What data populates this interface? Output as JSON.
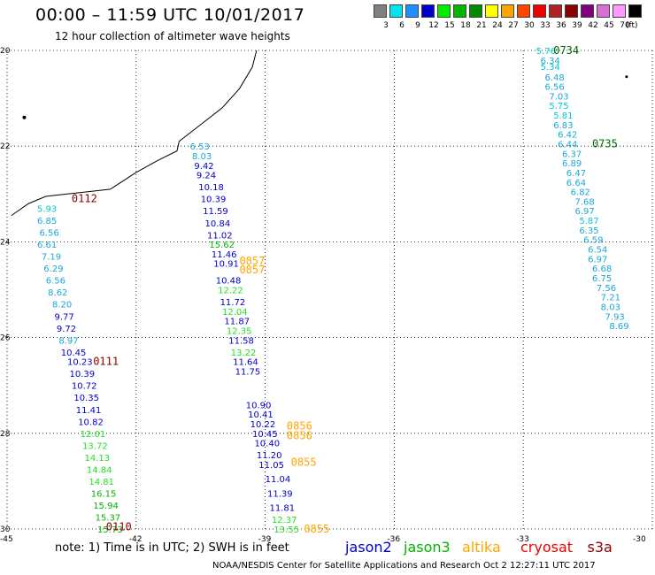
{
  "title": "00:00 – 11:59 UTC 10/01/2017",
  "subtitle": "12 hour collection of altimeter wave heights",
  "legend": {
    "unit": "(ft)",
    "bins": [
      {
        "label": "3",
        "color": "#808080"
      },
      {
        "label": "6",
        "color": "#00e5ee"
      },
      {
        "label": "9",
        "color": "#1e90ff"
      },
      {
        "label": "12",
        "color": "#0000cd"
      },
      {
        "label": "15",
        "color": "#00ee00"
      },
      {
        "label": "18",
        "color": "#00b400"
      },
      {
        "label": "21",
        "color": "#008b00"
      },
      {
        "label": "24",
        "color": "#ffff00"
      },
      {
        "label": "27",
        "color": "#ffa500"
      },
      {
        "label": "30",
        "color": "#ff4500"
      },
      {
        "label": "33",
        "color": "#ee0000"
      },
      {
        "label": "36",
        "color": "#b22222"
      },
      {
        "label": "39",
        "color": "#8b0000"
      },
      {
        "label": "42",
        "color": "#800080"
      },
      {
        "label": "45",
        "color": "#da70d6"
      },
      {
        "label": "70",
        "color": "#ff99ff"
      },
      {
        "label": "",
        "color": "#000000"
      }
    ]
  },
  "axes": {
    "lat_ticks": [
      "20",
      "22",
      "24",
      "26",
      "28",
      "30"
    ],
    "lon_ticks": [
      "-45",
      "-42",
      "-39",
      "-36",
      "-33",
      "-30"
    ]
  },
  "tracks": [
    {
      "name": "jason2-0734",
      "color_key": "cyan",
      "points": [
        {
          "lon": -32.7,
          "lat": -20.0,
          "v": "5.76"
        },
        {
          "lon": -32.6,
          "lat": -20.2,
          "v": "6.34"
        },
        {
          "lon": -32.6,
          "lat": -20.33,
          "v": "5.34"
        },
        {
          "lon": -32.5,
          "lat": -20.55,
          "v": "6.48"
        },
        {
          "lon": -32.5,
          "lat": -20.75,
          "v": "6.56"
        },
        {
          "lon": -32.4,
          "lat": -20.95,
          "v": "7.03"
        },
        {
          "lon": -32.4,
          "lat": -21.15,
          "v": "5.75"
        },
        {
          "lon": -32.3,
          "lat": -21.35,
          "v": "5.81"
        },
        {
          "lon": -32.3,
          "lat": -21.55,
          "v": "6.83"
        },
        {
          "lon": -32.2,
          "lat": -21.75,
          "v": "6.42"
        },
        {
          "lon": -32.2,
          "lat": -21.95,
          "v": "6.44"
        },
        {
          "lon": -32.1,
          "lat": -22.15,
          "v": "6.37"
        },
        {
          "lon": -32.1,
          "lat": -22.35,
          "v": "6.89"
        },
        {
          "lon": -32.0,
          "lat": -22.55,
          "v": "6.47"
        },
        {
          "lon": -32.0,
          "lat": -22.75,
          "v": "6.64"
        },
        {
          "lon": -31.9,
          "lat": -22.95,
          "v": "6.82"
        },
        {
          "lon": -31.8,
          "lat": -23.15,
          "v": "7.68"
        },
        {
          "lon": -31.8,
          "lat": -23.35,
          "v": "6.97"
        },
        {
          "lon": -31.7,
          "lat": -23.55,
          "v": "5.87"
        },
        {
          "lon": -31.7,
          "lat": -23.75,
          "v": "6.35"
        },
        {
          "lon": -31.6,
          "lat": -23.95,
          "v": "6.59"
        },
        {
          "lon": -31.5,
          "lat": -24.15,
          "v": "6.54"
        },
        {
          "lon": -31.5,
          "lat": -24.35,
          "v": "6.97"
        },
        {
          "lon": -31.4,
          "lat": -24.55,
          "v": "6.68"
        },
        {
          "lon": -31.4,
          "lat": -24.75,
          "v": "6.75"
        },
        {
          "lon": -31.3,
          "lat": -24.95,
          "v": "7.56"
        },
        {
          "lon": -31.2,
          "lat": -25.15,
          "v": "7.21"
        },
        {
          "lon": -31.2,
          "lat": -25.35,
          "v": "8.03"
        },
        {
          "lon": -31.1,
          "lat": -25.55,
          "v": "7.93"
        },
        {
          "lon": -31.0,
          "lat": -25.75,
          "v": "8.69"
        }
      ]
    },
    {
      "name": "cryosat-0112",
      "color_key": "mixed",
      "points": [
        {
          "lon": -44.3,
          "lat": -23.3,
          "v": "5.93"
        },
        {
          "lon": -44.3,
          "lat": -23.55,
          "v": "6.85"
        },
        {
          "lon": -44.25,
          "lat": -23.8,
          "v": "6.56"
        },
        {
          "lon": -44.3,
          "lat": -24.05,
          "v": "6.61"
        },
        {
          "lon": -44.2,
          "lat": -24.3,
          "v": "7.19"
        },
        {
          "lon": -44.15,
          "lat": -24.55,
          "v": "6.29"
        },
        {
          "lon": -44.1,
          "lat": -24.8,
          "v": "6.56"
        },
        {
          "lon": -44.05,
          "lat": -25.05,
          "v": "8.62"
        },
        {
          "lon": -43.95,
          "lat": -25.3,
          "v": "8.20"
        },
        {
          "lon": -43.9,
          "lat": -25.55,
          "v": "9.77"
        },
        {
          "lon": -43.85,
          "lat": -25.8,
          "v": "9.72"
        },
        {
          "lon": -43.8,
          "lat": -26.05,
          "v": "8.97"
        },
        {
          "lon": -43.75,
          "lat": -26.3,
          "v": "10.45"
        },
        {
          "lon": -43.6,
          "lat": -26.5,
          "v": "10.23"
        },
        {
          "lon": -43.55,
          "lat": -26.75,
          "v": "10.39"
        },
        {
          "lon": -43.5,
          "lat": -27.0,
          "v": "10.72"
        },
        {
          "lon": -43.45,
          "lat": -27.25,
          "v": "10.35"
        },
        {
          "lon": -43.4,
          "lat": -27.5,
          "v": "11.41"
        },
        {
          "lon": -43.35,
          "lat": -27.75,
          "v": "10.82"
        },
        {
          "lon": -43.3,
          "lat": -28.0,
          "v": "12.01"
        },
        {
          "lon": -43.25,
          "lat": -28.25,
          "v": "13.72"
        },
        {
          "lon": -43.2,
          "lat": -28.5,
          "v": "14.13"
        },
        {
          "lon": -43.15,
          "lat": -28.75,
          "v": "14.84"
        },
        {
          "lon": -43.1,
          "lat": -29.0,
          "v": "14.81"
        },
        {
          "lon": -43.05,
          "lat": -29.25,
          "v": "16.15"
        },
        {
          "lon": -43.0,
          "lat": -29.5,
          "v": "15.94"
        },
        {
          "lon": -42.95,
          "lat": -29.75,
          "v": "15.37"
        },
        {
          "lon": -42.9,
          "lat": -30.0,
          "v": "15.73"
        }
      ]
    },
    {
      "name": "jason2-0857",
      "color_key": "mixed",
      "points": [
        {
          "lon": -40.75,
          "lat": -22.0,
          "v": "6.53"
        },
        {
          "lon": -40.7,
          "lat": -22.2,
          "v": "8.03"
        },
        {
          "lon": -40.65,
          "lat": -22.4,
          "v": "9.42"
        },
        {
          "lon": -40.6,
          "lat": -22.6,
          "v": "9.24"
        },
        {
          "lon": -40.55,
          "lat": -22.85,
          "v": "10.18"
        },
        {
          "lon": -40.5,
          "lat": -23.1,
          "v": "10.39"
        },
        {
          "lon": -40.45,
          "lat": -23.35,
          "v": "11.59"
        },
        {
          "lon": -40.4,
          "lat": -23.6,
          "v": "10.84"
        },
        {
          "lon": -40.35,
          "lat": -23.85,
          "v": "11.02"
        },
        {
          "lon": -40.3,
          "lat": -24.05,
          "v": "15.62"
        },
        {
          "lon": -40.25,
          "lat": -24.25,
          "v": "11.46"
        },
        {
          "lon": -40.2,
          "lat": -24.45,
          "v": "10.91"
        },
        {
          "lon": -40.15,
          "lat": -24.8,
          "v": "10.48"
        },
        {
          "lon": -40.1,
          "lat": -25.0,
          "v": "12.22"
        },
        {
          "lon": -40.05,
          "lat": -25.25,
          "v": "11.72"
        },
        {
          "lon": -40.0,
          "lat": -25.45,
          "v": "12.04"
        },
        {
          "lon": -39.95,
          "lat": -25.65,
          "v": "11.87"
        },
        {
          "lon": -39.9,
          "lat": -25.85,
          "v": "12.35"
        },
        {
          "lon": -39.85,
          "lat": -26.05,
          "v": "11.58"
        },
        {
          "lon": -39.8,
          "lat": -26.3,
          "v": "13.22"
        },
        {
          "lon": -39.75,
          "lat": -26.5,
          "v": "11.64"
        },
        {
          "lon": -39.7,
          "lat": -26.7,
          "v": "11.75"
        }
      ]
    },
    {
      "name": "jason3-0855",
      "color_key": "mixed",
      "points": [
        {
          "lon": -39.45,
          "lat": -27.4,
          "v": "10.90"
        },
        {
          "lon": -39.4,
          "lat": -27.6,
          "v": "10.41"
        },
        {
          "lon": -39.35,
          "lat": -27.8,
          "v": "10.22"
        },
        {
          "lon": -39.3,
          "lat": -28.0,
          "v": "10.45"
        },
        {
          "lon": -39.25,
          "lat": -28.2,
          "v": "10.40"
        },
        {
          "lon": -39.2,
          "lat": -28.45,
          "v": "11.20"
        },
        {
          "lon": -39.15,
          "lat": -28.65,
          "v": "11.05"
        },
        {
          "lon": -39.0,
          "lat": -28.95,
          "v": "11.04"
        },
        {
          "lon": -38.95,
          "lat": -29.25,
          "v": "11.39"
        },
        {
          "lon": -38.9,
          "lat": -29.55,
          "v": "11.81"
        },
        {
          "lon": -38.85,
          "lat": -29.8,
          "v": "12.37"
        },
        {
          "lon": -38.8,
          "lat": -30.0,
          "v": "13.55"
        }
      ]
    }
  ],
  "time_labels": [
    {
      "lon": -32.3,
      "lat": -20.0,
      "text": "0734",
      "color": "#006400"
    },
    {
      "lon": -31.4,
      "lat": -21.95,
      "text": "0735",
      "color": "#006400"
    },
    {
      "lon": -43.5,
      "lat": -23.1,
      "text": "0112",
      "color": "#8b0000"
    },
    {
      "lon": -43.0,
      "lat": -26.5,
      "text": "0111",
      "color": "#8b0000"
    },
    {
      "lon": -42.7,
      "lat": -29.95,
      "text": "0110",
      "color": "#8b0000"
    },
    {
      "lon": -39.6,
      "lat": -24.4,
      "text": "0857",
      "color": "#ffa500"
    },
    {
      "lon": -39.6,
      "lat": -24.58,
      "text": "0857",
      "color": "#ffa500"
    },
    {
      "lon": -38.5,
      "lat": -27.85,
      "text": "0856",
      "color": "#ffa500"
    },
    {
      "lon": -38.5,
      "lat": -28.05,
      "text": "0856",
      "color": "#ffa500"
    },
    {
      "lon": -38.4,
      "lat": -28.6,
      "text": "0855",
      "color": "#ffa500"
    },
    {
      "lon": -38.1,
      "lat": -30.0,
      "text": "0855",
      "color": "#ffa500"
    }
  ],
  "note": "note: 1) Time is in UTC; 2) SWH is in feet",
  "satellites": [
    {
      "name": "jason2",
      "color": "#0000cd"
    },
    {
      "name": "jason3",
      "color": "#00b400"
    },
    {
      "name": "altika",
      "color": "#ffa500"
    },
    {
      "name": "cryosat",
      "color": "#ee0000"
    },
    {
      "name": "s3a",
      "color": "#8b0000"
    }
  ],
  "credit": "NOAA/NESDIS Center for Satellite Applications and Research   Oct  2 12:27:11 UTC 2017"
}
